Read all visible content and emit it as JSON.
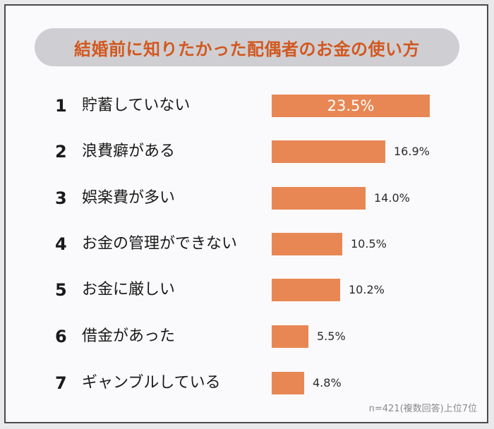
{
  "title": "結婚前に知りたかった配偶者のお金の使い方",
  "note": "n=421(複数回答)上位7位",
  "colors": {
    "bar": "#e88754",
    "title": "#d2581f",
    "title_bg": "#cfcfd3"
  },
  "rows": [
    {
      "rank": "1",
      "label": "貯蓄していない",
      "value_label": "23.5%"
    },
    {
      "rank": "2",
      "label": "浪費癖がある",
      "value_label": "16.9%"
    },
    {
      "rank": "3",
      "label": "娯楽費が多い",
      "value_label": "14.0%"
    },
    {
      "rank": "4",
      "label": "お金の管理ができない",
      "value_label": "10.5%"
    },
    {
      "rank": "5",
      "label": "お金に厳しい",
      "value_label": "10.2%"
    },
    {
      "rank": "6",
      "label": "借金があった",
      "value_label": "5.5%"
    },
    {
      "rank": "7",
      "label": "ギャンブルしている",
      "value_label": "4.8%"
    }
  ],
  "chart_data": {
    "type": "bar",
    "orientation": "horizontal",
    "title": "結婚前に知りたかった配偶者のお金の使い方",
    "categories": [
      "貯蓄していない",
      "浪費癖がある",
      "娯楽費が多い",
      "お金の管理ができない",
      "お金に厳しい",
      "借金があった",
      "ギャンブルしている"
    ],
    "values": [
      23.5,
      16.9,
      14.0,
      10.5,
      10.2,
      5.5,
      4.8
    ],
    "unit": "%",
    "xlabel": "",
    "ylabel": "",
    "grid": false,
    "legend": null,
    "annotations": [
      "n=421(複数回答)上位7位"
    ]
  }
}
